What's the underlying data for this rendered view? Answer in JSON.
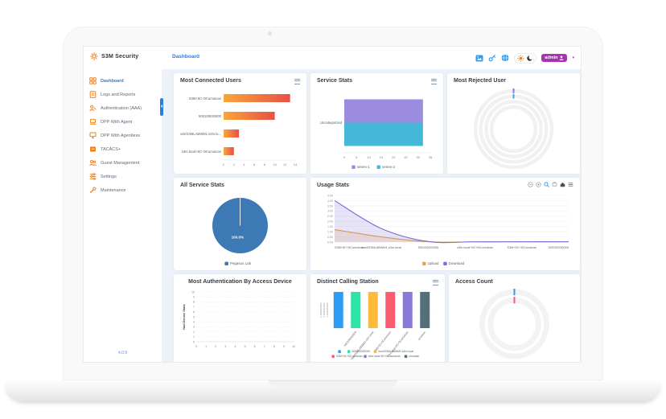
{
  "brand": {
    "name": "S3M Security"
  },
  "header": {
    "breadcrumb": "Dashboard",
    "user": {
      "label": "admin"
    }
  },
  "sidebar": {
    "items": [
      {
        "label": "Dashboard",
        "icon": "dashboard",
        "active": true
      },
      {
        "label": "Logs and Reports",
        "icon": "logs",
        "active": false
      },
      {
        "label": "Authentication (AAA)",
        "icon": "auth",
        "active": false
      },
      {
        "label": "DPP With Agent",
        "icon": "agent",
        "active": false
      },
      {
        "label": "DPP With Agentless",
        "icon": "agentless",
        "active": false
      },
      {
        "label": "TACACS+",
        "icon": "tacacs",
        "active": false
      },
      {
        "label": "Guest Management",
        "icon": "guest",
        "active": false
      },
      {
        "label": "Settings",
        "icon": "settings",
        "active": false
      },
      {
        "label": "Maintenance",
        "icon": "maintenance",
        "active": false
      }
    ],
    "version": "4.0.9"
  },
  "colors": {
    "accent_orange": "#f0821e",
    "accent_blue": "#2a7ce0",
    "admin_badge": "#a733ad",
    "main_bg": "#edf2fa"
  },
  "chart_data": [
    {
      "id": "most_connected_users",
      "type": "bar",
      "orientation": "horizontal",
      "title": "Most Connected Users",
      "categories": [
        "S3M+5C+5Cumutcan",
        "500100020000",
        "host/S3MLABWM1.s3m.lo...",
        "s3m.local+5C+5Cumutcan"
      ],
      "values": [
        13,
        10,
        3,
        2
      ],
      "xlim": [
        0,
        14
      ],
      "xticks": [
        0,
        2,
        4,
        6,
        8,
        10,
        12,
        14
      ],
      "bar_gradient": [
        "#f9a63a",
        "#e85047"
      ]
    },
    {
      "id": "service_stats",
      "type": "grouped_hbar",
      "title": "Service Stats",
      "categories": [
        "Uncategorized"
      ],
      "series": [
        {
          "name": "series-1",
          "values": [
            32
          ],
          "color": "#9b8ce0"
        },
        {
          "name": "series-2",
          "values": [
            32
          ],
          "color": "#45b8d9"
        }
      ],
      "xlim": [
        0,
        35
      ],
      "xticks": [
        0,
        5,
        10,
        15,
        20,
        25,
        30,
        35
      ],
      "legend_position": "bottom"
    },
    {
      "id": "most_rejected_user",
      "type": "radialbar",
      "title": "Most Rejected User",
      "track_color": "#f1f1f4",
      "rings": [
        {
          "tick_color": "#8a7ae0"
        },
        {
          "tick_color": "#45a8e8"
        },
        {
          "tick_color": null
        },
        {
          "tick_color": null
        }
      ]
    },
    {
      "id": "all_service_stats",
      "type": "pie",
      "title": "All Service Stats",
      "labels": [
        "Pegasus Lab"
      ],
      "values": [
        100
      ],
      "data_label": "100.0%",
      "colors": [
        "#3d7ab5"
      ],
      "legend_position": "bottom"
    },
    {
      "id": "usage_stats",
      "type": "area",
      "title": "Usage Stats",
      "x": [
        "S3M+5C+5Cumutcan",
        "host/S3MLABWM1.s3m.local",
        "500100020000",
        "s3m.local+5C+5Cumutcan",
        "S3M+5C+5Cumutcan",
        "500100030000"
      ],
      "series": [
        {
          "name": "Upload",
          "color": "#e7a33e",
          "values": [
            1.2,
            0.5,
            0.03,
            0.02,
            0.02,
            0.02
          ]
        },
        {
          "name": "Download",
          "color": "#7d6bd8",
          "values": [
            4.0,
            1.3,
            0.05,
            0.03,
            0.03,
            0.03
          ]
        }
      ],
      "ylim": [
        0,
        4.5
      ],
      "yticks": [
        "4.50",
        "4.00",
        "3.50",
        "3.00",
        "2.50",
        "2.00",
        "1.50",
        "1.00",
        "0.50",
        "0.00"
      ],
      "grid": true,
      "legend_position": "bottom"
    },
    {
      "id": "most_auth_by_access_device",
      "type": "scatter",
      "title": "Most Authentication By Access Device",
      "ylabel": "Nad Device Stats",
      "xlim": [
        0,
        10
      ],
      "ylim": [
        0,
        10
      ],
      "xticks": [
        0,
        1,
        2,
        3,
        4,
        5,
        6,
        7,
        8,
        9,
        10
      ],
      "yticks": [
        0,
        1,
        2,
        3,
        4,
        5,
        6,
        7,
        8,
        9,
        10
      ],
      "points": [],
      "grid": true
    },
    {
      "id": "distinct_calling_station",
      "type": "bar",
      "orientation": "vertical",
      "title": "Distinct Calling Station",
      "categories": [
        "",
        "500100020000",
        "host/S3MLABWM1.s3m.local",
        "S3M+5C+5Cumutcan",
        "s3m.local+5C+5Cumutcan",
        "umutcan"
      ],
      "values": [
        1,
        1,
        1,
        1,
        1,
        1
      ],
      "colors": [
        "#2d9cf4",
        "#2fe3a4",
        "#fdbb3c",
        "#fb5c70",
        "#8a79d9",
        "#546e7a"
      ],
      "ylim": [
        0,
        1
      ],
      "yticks": [
        "0.0000000000",
        "0.5000000000",
        "1.0000000000"
      ],
      "legend_position": "bottom"
    },
    {
      "id": "access_count",
      "type": "radialbar",
      "title": "Access Count",
      "track_color": "#f3f3f5",
      "rings": [
        {
          "tick_color": "#2d9cf4"
        },
        {
          "tick_color": "#fb5c70"
        }
      ]
    }
  ]
}
